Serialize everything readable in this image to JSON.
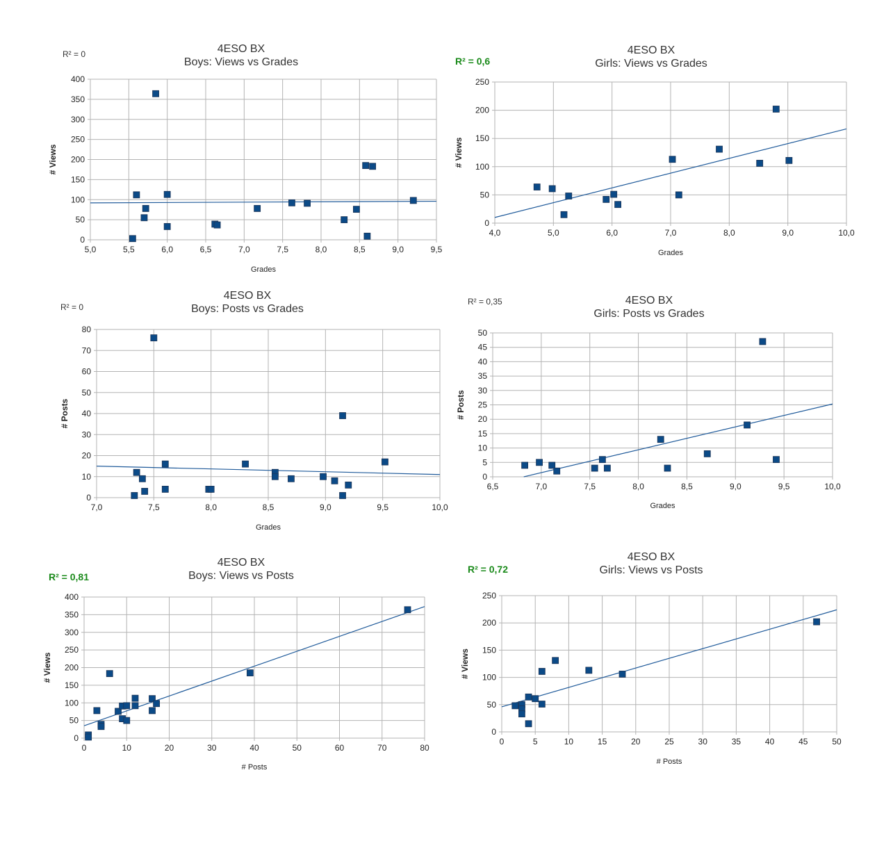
{
  "chart_data": [
    {
      "type": "scatter",
      "title": "4ESO BX",
      "subtitle": "Boys: Views vs Grades",
      "r2": "R² = 0",
      "r2_highlight": false,
      "xlabel": "Grades",
      "ylabel": "# Views",
      "xlim": [
        5.0,
        9.5
      ],
      "xticks": [
        5.0,
        5.5,
        6.0,
        6.5,
        7.0,
        7.5,
        8.0,
        8.5,
        9.0,
        9.5
      ],
      "ylim": [
        0,
        400
      ],
      "yticks": [
        0,
        50,
        100,
        150,
        200,
        250,
        300,
        350,
        400
      ],
      "points": [
        [
          5.55,
          3
        ],
        [
          5.6,
          112
        ],
        [
          5.85,
          364
        ],
        [
          5.7,
          55
        ],
        [
          5.72,
          78
        ],
        [
          6.0,
          113
        ],
        [
          6.0,
          33
        ],
        [
          6.62,
          39
        ],
        [
          6.65,
          37
        ],
        [
          7.17,
          78
        ],
        [
          7.62,
          92
        ],
        [
          7.82,
          91
        ],
        [
          8.3,
          50
        ],
        [
          8.46,
          76
        ],
        [
          8.58,
          185
        ],
        [
          8.6,
          9
        ],
        [
          8.67,
          183
        ],
        [
          9.2,
          98
        ]
      ],
      "trendline": [
        [
          5.0,
          92
        ],
        [
          9.5,
          96
        ]
      ]
    },
    {
      "type": "scatter",
      "title": "4ESO BX",
      "subtitle": "Girls: Views vs Grades",
      "r2": "R² = 0,6",
      "r2_highlight": true,
      "xlabel": "Grades",
      "ylabel": "# Views",
      "xlim": [
        4.0,
        10.0
      ],
      "xticks": [
        4.0,
        5.0,
        6.0,
        7.0,
        8.0,
        9.0,
        10.0
      ],
      "ylim": [
        0,
        250
      ],
      "yticks": [
        0,
        50,
        100,
        150,
        200,
        250
      ],
      "points": [
        [
          4.72,
          64
        ],
        [
          4.98,
          61
        ],
        [
          5.18,
          15
        ],
        [
          5.26,
          48
        ],
        [
          5.9,
          42
        ],
        [
          6.03,
          51
        ],
        [
          6.1,
          33
        ],
        [
          7.03,
          113
        ],
        [
          7.14,
          50
        ],
        [
          7.83,
          131
        ],
        [
          8.52,
          106
        ],
        [
          8.8,
          202
        ],
        [
          9.02,
          111
        ]
      ],
      "trendline": [
        [
          4.0,
          10
        ],
        [
          10.0,
          167
        ]
      ]
    },
    {
      "type": "scatter",
      "title": "4ESO BX",
      "subtitle": "Boys: Posts vs Grades",
      "r2": "R² = 0",
      "r2_highlight": false,
      "xlabel": "Grades",
      "ylabel": "# Posts",
      "xlim": [
        7.0,
        10.0
      ],
      "xticks": [
        7.0,
        7.5,
        8.0,
        8.5,
        9.0,
        9.5,
        10.0
      ],
      "ylim": [
        0,
        80
      ],
      "yticks": [
        0,
        10,
        20,
        30,
        40,
        50,
        60,
        70,
        80
      ],
      "points": [
        [
          7.33,
          1
        ],
        [
          7.35,
          12
        ],
        [
          7.4,
          9
        ],
        [
          7.42,
          3
        ],
        [
          7.5,
          76
        ],
        [
          7.6,
          16
        ],
        [
          7.6,
          4
        ],
        [
          7.98,
          4
        ],
        [
          8.0,
          4
        ],
        [
          8.3,
          16
        ],
        [
          8.56,
          12
        ],
        [
          8.56,
          10
        ],
        [
          8.7,
          9
        ],
        [
          8.98,
          10
        ],
        [
          9.08,
          8
        ],
        [
          9.15,
          39
        ],
        [
          9.15,
          1
        ],
        [
          9.2,
          6
        ],
        [
          9.52,
          17
        ]
      ],
      "trendline": [
        [
          7.0,
          15
        ],
        [
          10.0,
          11
        ]
      ]
    },
    {
      "type": "scatter",
      "title": "4ESO BX",
      "subtitle": "Girls: Posts vs Grades",
      "r2": "R² = 0,35",
      "r2_highlight": false,
      "xlabel": "Grades",
      "ylabel": "# Posts",
      "xlim": [
        6.5,
        10.0
      ],
      "xticks": [
        6.5,
        7.0,
        7.5,
        8.0,
        8.5,
        9.0,
        9.5,
        10.0
      ],
      "ylim": [
        0,
        50
      ],
      "yticks": [
        0,
        5,
        10,
        15,
        20,
        25,
        30,
        35,
        40,
        45,
        50
      ],
      "points": [
        [
          6.83,
          4
        ],
        [
          6.98,
          5
        ],
        [
          7.11,
          4
        ],
        [
          7.16,
          2
        ],
        [
          7.55,
          3
        ],
        [
          7.63,
          6
        ],
        [
          7.68,
          3
        ],
        [
          8.23,
          13
        ],
        [
          8.3,
          3
        ],
        [
          8.71,
          8
        ],
        [
          9.12,
          18
        ],
        [
          9.28,
          47
        ],
        [
          9.42,
          6
        ]
      ],
      "trendline": [
        [
          6.82,
          0
        ],
        [
          10.0,
          25.3
        ]
      ]
    },
    {
      "type": "scatter",
      "title": "4ESO BX",
      "subtitle": "Boys: Views vs Posts",
      "r2": "R² = 0,81",
      "r2_highlight": true,
      "xlabel": "# Posts",
      "ylabel": "# Views",
      "xlim": [
        0,
        80
      ],
      "xticks": [
        0,
        10,
        20,
        30,
        40,
        50,
        60,
        70,
        80
      ],
      "ylim": [
        0,
        400
      ],
      "yticks": [
        0,
        50,
        100,
        150,
        200,
        250,
        300,
        350,
        400
      ],
      "points": [
        [
          1,
          9
        ],
        [
          1,
          3
        ],
        [
          3,
          78
        ],
        [
          4,
          39
        ],
        [
          4,
          33
        ],
        [
          6,
          183
        ],
        [
          8,
          76
        ],
        [
          9,
          55
        ],
        [
          9,
          91
        ],
        [
          10,
          92
        ],
        [
          10,
          50
        ],
        [
          12,
          113
        ],
        [
          12,
          92
        ],
        [
          16,
          112
        ],
        [
          16,
          78
        ],
        [
          17,
          98
        ],
        [
          39,
          185
        ],
        [
          76,
          364
        ]
      ],
      "trendline": [
        [
          0,
          35
        ],
        [
          80,
          373
        ]
      ]
    },
    {
      "type": "scatter",
      "title": "4ESO BX",
      "subtitle": "Girls: Views vs Posts",
      "r2": "R² = 0,72",
      "r2_highlight": true,
      "xlabel": "# Posts",
      "ylabel": "# Views",
      "xlim": [
        0,
        50
      ],
      "xticks": [
        0,
        5,
        10,
        15,
        20,
        25,
        30,
        35,
        40,
        45,
        50
      ],
      "ylim": [
        0,
        250
      ],
      "yticks": [
        0,
        50,
        100,
        150,
        200,
        250
      ],
      "points": [
        [
          2,
          48
        ],
        [
          3,
          50
        ],
        [
          3,
          42
        ],
        [
          3,
          33
        ],
        [
          4,
          64
        ],
        [
          4,
          15
        ],
        [
          5,
          61
        ],
        [
          6,
          111
        ],
        [
          6,
          51
        ],
        [
          8,
          131
        ],
        [
          13,
          113
        ],
        [
          18,
          106
        ],
        [
          47,
          202
        ]
      ],
      "trendline": [
        [
          0,
          46
        ],
        [
          50,
          224
        ]
      ]
    }
  ]
}
